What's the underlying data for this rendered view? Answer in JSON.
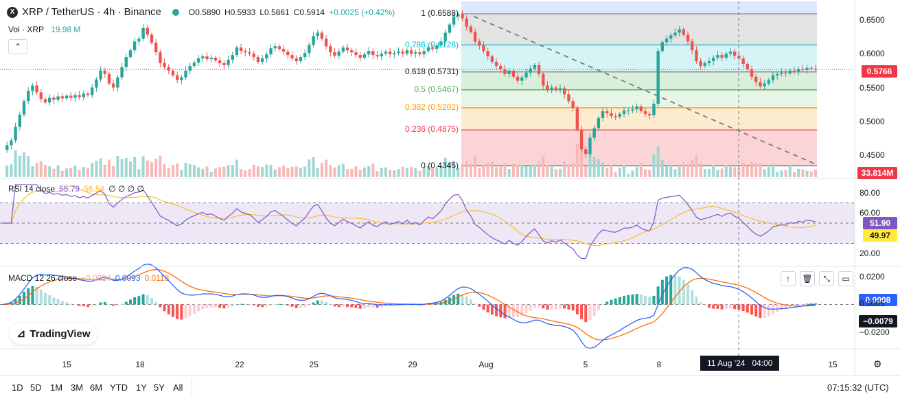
{
  "header": {
    "symbol": "XRP / TetherUS · 4h · Binance",
    "open": "O0.5890",
    "high": "H0.5933",
    "low": "L0.5861",
    "close": "C0.5914",
    "change": "+0.0025 (+0.42%)",
    "vol_label": "Vol · XRP",
    "vol_value": "19.98 M",
    "logo_text": "X"
  },
  "fib": [
    {
      "label": "1 (0.6588)",
      "color": "#787b86"
    },
    {
      "label": "0.786 (0.6128)",
      "color": "#00bcd4"
    },
    {
      "label": "0.618 (0.5731)",
      "color": "#787b86"
    },
    {
      "label": "0.5 (0.5467)",
      "color": "#4caf50"
    },
    {
      "label": "0.382 (0.5202)",
      "color": "#ff9800"
    },
    {
      "label": "0.236 (0.4875)",
      "color": "#f23645"
    },
    {
      "label": "0 (0.4345)",
      "color": "#787b86"
    }
  ],
  "price_axis": {
    "ticks": [
      "0.6500",
      "0.6000",
      "0.5500",
      "0.5000",
      "0.4500"
    ],
    "last_price": "0.5766",
    "last_volume": "33.814M"
  },
  "rsi": {
    "label": "RSI 14 close",
    "v1": "55.79",
    "v2": "56.54",
    "extra": "∅ ∅ ∅ ∅",
    "ticks": [
      "80.00",
      "60.00",
      "20.00"
    ],
    "badge1": "51.90",
    "badge2": "49.97"
  },
  "macd": {
    "label": "MACD 12 26 close",
    "hist": "−0.0024",
    "macd": "0.0093",
    "signal": "0.0118",
    "ticks": [
      "0.0200",
      "0.0005",
      "−0.0200"
    ],
    "badge1": "0.0008",
    "badge2": "−0.0079"
  },
  "time_axis": {
    "labels": [
      "15",
      "18",
      "22",
      "25",
      "29",
      "Aug",
      "5",
      "8",
      "15"
    ],
    "crosshair": "11 Aug '24   04:00"
  },
  "timeframes": [
    "1D",
    "5D",
    "1M",
    "3M",
    "6M",
    "YTD",
    "1Y",
    "5Y",
    "All"
  ],
  "clock": "07:15:32 (UTC)",
  "watermark": "TradingView",
  "colors": {
    "up": "#26a69a",
    "down": "#ef5350",
    "rsi": "#7e57c2",
    "macd": "#2962ff",
    "signal": "#ff6d00"
  },
  "chart_data": {
    "type": "candlestick",
    "symbol": "XRP/USDT",
    "interval": "4h",
    "closes": [
      0.458,
      0.465,
      0.472,
      0.492,
      0.51,
      0.53,
      0.545,
      0.553,
      0.543,
      0.533,
      0.528,
      0.535,
      0.532,
      0.537,
      0.534,
      0.538,
      0.535,
      0.539,
      0.536,
      0.541,
      0.539,
      0.55,
      0.562,
      0.575,
      0.57,
      0.556,
      0.55,
      0.565,
      0.58,
      0.595,
      0.605,
      0.618,
      0.622,
      0.638,
      0.628,
      0.616,
      0.602,
      0.586,
      0.58,
      0.575,
      0.568,
      0.561,
      0.565,
      0.575,
      0.582,
      0.587,
      0.593,
      0.596,
      0.592,
      0.594,
      0.59,
      0.586,
      0.583,
      0.591,
      0.598,
      0.609,
      0.604,
      0.602,
      0.6,
      0.595,
      0.588,
      0.593,
      0.599,
      0.608,
      0.611,
      0.607,
      0.603,
      0.598,
      0.593,
      0.589,
      0.595,
      0.601,
      0.613,
      0.626,
      0.631,
      0.622,
      0.611,
      0.602,
      0.597,
      0.603,
      0.609,
      0.605,
      0.602,
      0.598,
      0.594,
      0.599,
      0.604,
      0.598,
      0.596,
      0.6,
      0.603,
      0.599,
      0.601,
      0.603,
      0.6,
      0.605,
      0.6,
      0.602,
      0.599,
      0.604,
      0.609,
      0.607,
      0.612,
      0.618,
      0.631,
      0.643,
      0.655,
      0.658,
      0.652,
      0.64,
      0.632,
      0.618,
      0.612,
      0.604,
      0.596,
      0.588,
      0.582,
      0.577,
      0.57,
      0.575,
      0.566,
      0.56,
      0.565,
      0.572,
      0.578,
      0.583,
      0.57,
      0.553,
      0.547,
      0.55,
      0.546,
      0.549,
      0.54,
      0.53,
      0.52,
      0.488,
      0.459,
      0.452,
      0.476,
      0.49,
      0.505,
      0.515,
      0.512,
      0.508,
      0.507,
      0.511,
      0.516,
      0.516,
      0.518,
      0.522,
      0.515,
      0.511,
      0.509,
      0.526,
      0.604,
      0.617,
      0.622,
      0.627,
      0.631,
      0.636,
      0.628,
      0.618,
      0.605,
      0.589,
      0.582,
      0.586,
      0.589,
      0.594,
      0.598,
      0.594,
      0.6,
      0.603,
      0.597,
      0.593,
      0.585,
      0.577,
      0.566,
      0.558,
      0.552,
      0.556,
      0.561,
      0.568,
      0.57,
      0.572,
      0.571,
      0.575,
      0.574,
      0.577,
      0.576,
      0.579,
      0.578,
      0.5766
    ],
    "fib_levels": {
      "1": 0.6588,
      "0.786": 0.6128,
      "0.618": 0.5731,
      "0.5": 0.5467,
      "0.382": 0.5202,
      "0.236": 0.4875,
      "0": 0.4345
    },
    "ylim": [
      0.43,
      0.665
    ],
    "rsi_range": [
      20,
      80
    ],
    "macd_range": [
      -0.02,
      0.02
    ],
    "last": 0.5766
  }
}
